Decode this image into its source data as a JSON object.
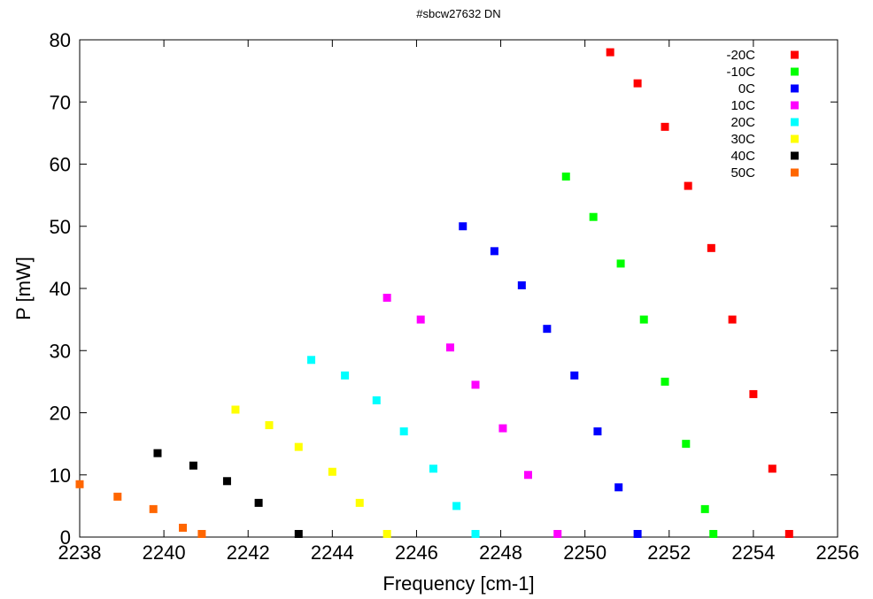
{
  "chart_data": {
    "type": "scatter",
    "title": "#sbcw27632 DN",
    "xlabel": "Frequency [cm-1]",
    "ylabel": "P [mW]",
    "xlim": [
      2238,
      2256
    ],
    "ylim": [
      0,
      80
    ],
    "xticks": [
      2238,
      2240,
      2242,
      2244,
      2246,
      2248,
      2250,
      2252,
      2254,
      2256
    ],
    "yticks": [
      0,
      10,
      20,
      30,
      40,
      50,
      60,
      70,
      80
    ],
    "grid": false,
    "legend_position": "top-right",
    "series": [
      {
        "name": "-20C",
        "color": "#ff0000",
        "x": [
          2250.6,
          2251.25,
          2251.9,
          2252.45,
          2253.0,
          2253.5,
          2254.0,
          2254.45,
          2254.85
        ],
        "y": [
          78,
          73,
          66,
          56.5,
          46.5,
          35,
          23,
          11,
          0.5
        ]
      },
      {
        "name": "-10C",
        "color": "#00ff00",
        "x": [
          2249.55,
          2250.2,
          2250.85,
          2251.4,
          2251.9,
          2252.4,
          2252.85,
          2253.05
        ],
        "y": [
          58,
          51.5,
          44,
          35,
          25,
          15,
          4.5,
          0.5
        ]
      },
      {
        "name": "0C",
        "color": "#0000ff",
        "x": [
          2247.1,
          2247.85,
          2248.5,
          2249.1,
          2249.75,
          2250.3,
          2250.8,
          2251.25
        ],
        "y": [
          50,
          46,
          40.5,
          33.5,
          26,
          17,
          8,
          0.5
        ]
      },
      {
        "name": "10C",
        "color": "#ff00ff",
        "x": [
          2245.3,
          2246.1,
          2246.8,
          2247.4,
          2248.05,
          2248.65,
          2249.35
        ],
        "y": [
          38.5,
          35,
          30.5,
          24.5,
          17.5,
          10,
          0.5
        ]
      },
      {
        "name": "20C",
        "color": "#00ffff",
        "x": [
          2243.5,
          2244.3,
          2245.05,
          2245.7,
          2246.4,
          2246.95,
          2247.4
        ],
        "y": [
          28.5,
          26,
          22,
          17,
          11,
          5,
          0.5
        ]
      },
      {
        "name": "30C",
        "color": "#ffff00",
        "x": [
          2241.7,
          2242.5,
          2243.2,
          2244.0,
          2244.65,
          2245.3
        ],
        "y": [
          20.5,
          18,
          14.5,
          10.5,
          5.5,
          0.5
        ]
      },
      {
        "name": "40C",
        "color": "#000000",
        "x": [
          2239.85,
          2240.7,
          2241.5,
          2242.25,
          2243.2
        ],
        "y": [
          13.5,
          11.5,
          9,
          5.5,
          0.5
        ]
      },
      {
        "name": "50C",
        "color": "#ff6600",
        "x": [
          2238.0,
          2238.9,
          2239.75,
          2240.45,
          2240.9
        ],
        "y": [
          8.5,
          6.5,
          4.5,
          1.5,
          0.5
        ]
      }
    ]
  }
}
